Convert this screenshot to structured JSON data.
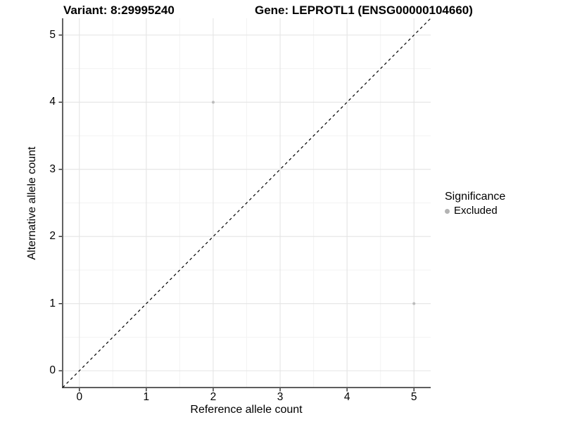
{
  "chart_data": {
    "type": "scatter",
    "title_left": "Variant: 8:29995240",
    "title_right": "Gene: LEPROTL1 (ENSG00000104660)",
    "xlabel": "Reference allele count",
    "ylabel": "Alternative allele count",
    "xlim": [
      -0.25,
      5.25
    ],
    "ylim": [
      -0.25,
      5.25
    ],
    "x_ticks": [
      0,
      1,
      2,
      3,
      4,
      5
    ],
    "y_ticks": [
      0,
      1,
      2,
      3,
      4,
      5
    ],
    "x_minor_ticks": [
      0.5,
      1.5,
      2.5,
      3.5,
      4.5
    ],
    "y_minor_ticks": [
      0.5,
      1.5,
      2.5,
      3.5,
      4.5
    ],
    "grid": true,
    "series": [
      {
        "name": "Excluded",
        "color": "#bcbcbc",
        "points": [
          {
            "x": 2,
            "y": 4
          },
          {
            "x": 5,
            "y": 1
          }
        ]
      }
    ],
    "reference_line": {
      "kind": "identity",
      "slope": 1,
      "intercept": 0,
      "style": "dashed",
      "color": "#000000"
    },
    "legend": {
      "title": "Significance",
      "position": "right",
      "entries": [
        {
          "label": "Excluded",
          "color": "#b3b3b3"
        }
      ]
    },
    "colors": {
      "background": "#ffffff",
      "grid_major": "#e4e4e4",
      "grid_minor": "#f3f3f3",
      "axis_line": "#474747",
      "tick_mark": "#2b2b2b",
      "text": "#000000",
      "point": "#bcbcbc"
    }
  }
}
